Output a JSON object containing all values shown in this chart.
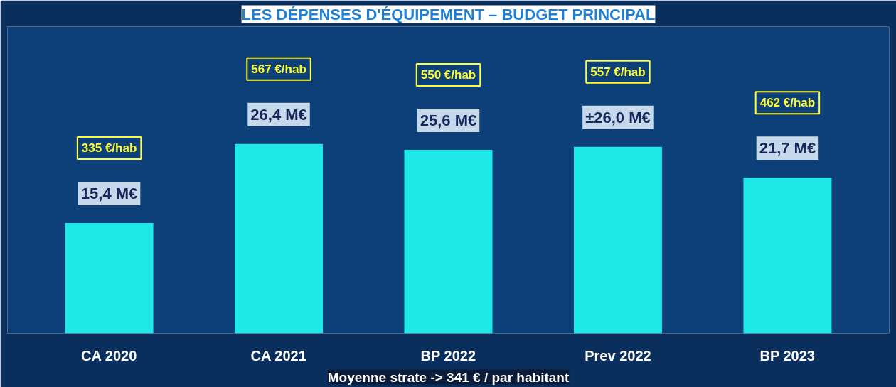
{
  "chart_data": {
    "type": "bar",
    "title": "LES DÉPENSES D'ÉQUIPEMENT – BUDGET PRINCIPAL",
    "categories": [
      "CA 2020",
      "CA 2021",
      "BP 2022",
      "Prev 2022",
      "BP 2023"
    ],
    "values": [
      15.4,
      26.4,
      25.6,
      26.0,
      21.7
    ],
    "value_labels": [
      "15,4 M€",
      "26,4 M€",
      "25,6 M€",
      "±26,0 M€",
      "21,7 M€"
    ],
    "color": "#1ee8e8",
    "annotations": [
      "335 €/hab",
      "567 €/hab",
      "550 €/hab",
      "557 €/hab",
      "462 €/hab",
      "Moyenne strate -> 341 € / par habitant"
    ],
    "grid": false
  }
}
